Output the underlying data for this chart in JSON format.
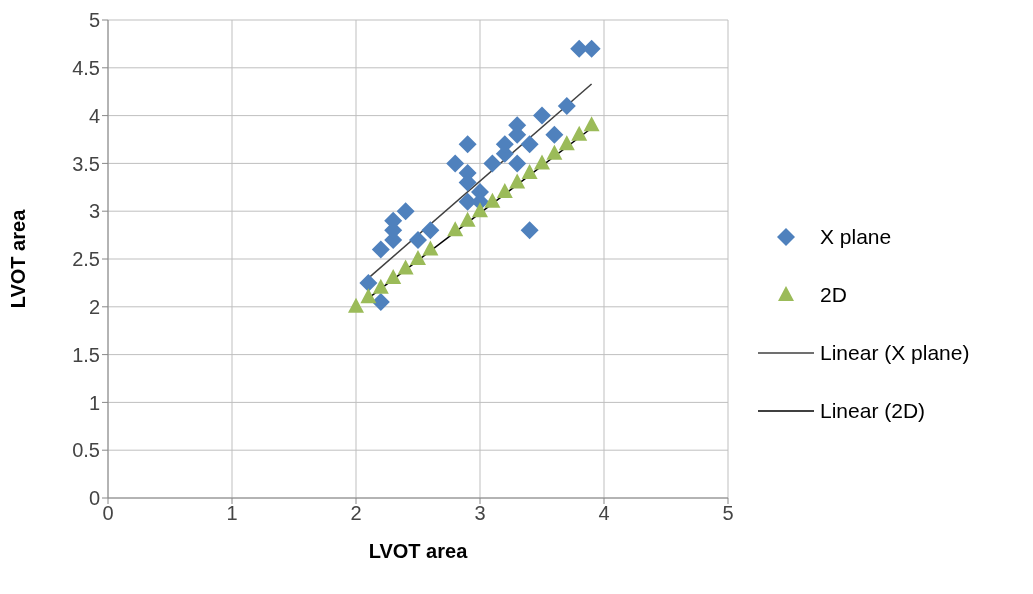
{
  "chart_data": {
    "type": "scatter",
    "xlabel": "LVOT area",
    "ylabel": "LVOT area",
    "xlim": [
      0,
      5
    ],
    "ylim": [
      0,
      5
    ],
    "xticks": [
      0,
      1,
      2,
      3,
      4,
      5
    ],
    "yticks": [
      0,
      0.5,
      1,
      1.5,
      2,
      2.5,
      3,
      3.5,
      4,
      4.5,
      5
    ],
    "grid": true,
    "legend": "right",
    "series": [
      {
        "name": "X plane",
        "color": "#4f81bd",
        "marker": "diamond",
        "x": [
          2.1,
          2.2,
          2.2,
          2.3,
          2.3,
          2.3,
          2.4,
          2.5,
          2.6,
          2.8,
          2.9,
          2.9,
          2.9,
          2.9,
          3.0,
          3.0,
          3.1,
          3.2,
          3.2,
          3.3,
          3.3,
          3.3,
          3.4,
          3.4,
          3.5,
          3.6,
          3.7,
          3.8,
          3.9
        ],
        "values": [
          2.25,
          2.05,
          2.6,
          2.7,
          2.8,
          2.9,
          3.0,
          2.7,
          2.8,
          3.5,
          3.7,
          3.4,
          3.3,
          3.1,
          3.2,
          3.1,
          3.5,
          3.6,
          3.7,
          3.9,
          3.8,
          3.5,
          3.7,
          2.8,
          4.0,
          3.8,
          4.1,
          4.7,
          4.7
        ]
      },
      {
        "name": "2D",
        "color": "#9bbb59",
        "marker": "triangle",
        "x": [
          2.0,
          2.1,
          2.2,
          2.3,
          2.4,
          2.5,
          2.6,
          2.8,
          2.9,
          3.0,
          3.1,
          3.2,
          3.3,
          3.4,
          3.5,
          3.6,
          3.7,
          3.8,
          3.9
        ],
        "values": [
          2.0,
          2.1,
          2.2,
          2.3,
          2.4,
          2.5,
          2.6,
          2.8,
          2.9,
          3.0,
          3.1,
          3.2,
          3.3,
          3.4,
          3.5,
          3.6,
          3.7,
          3.8,
          3.9
        ]
      },
      {
        "name": "Linear (X plane)",
        "type": "line",
        "color": "#404040",
        "marker": "none",
        "x": [
          2.1,
          3.9
        ],
        "values": [
          2.3,
          4.33
        ]
      },
      {
        "name": "Linear (2D)",
        "type": "line",
        "color": "#000000",
        "marker": "none",
        "x": [
          2.08,
          3.9
        ],
        "values": [
          2.07,
          3.87
        ]
      }
    ]
  }
}
